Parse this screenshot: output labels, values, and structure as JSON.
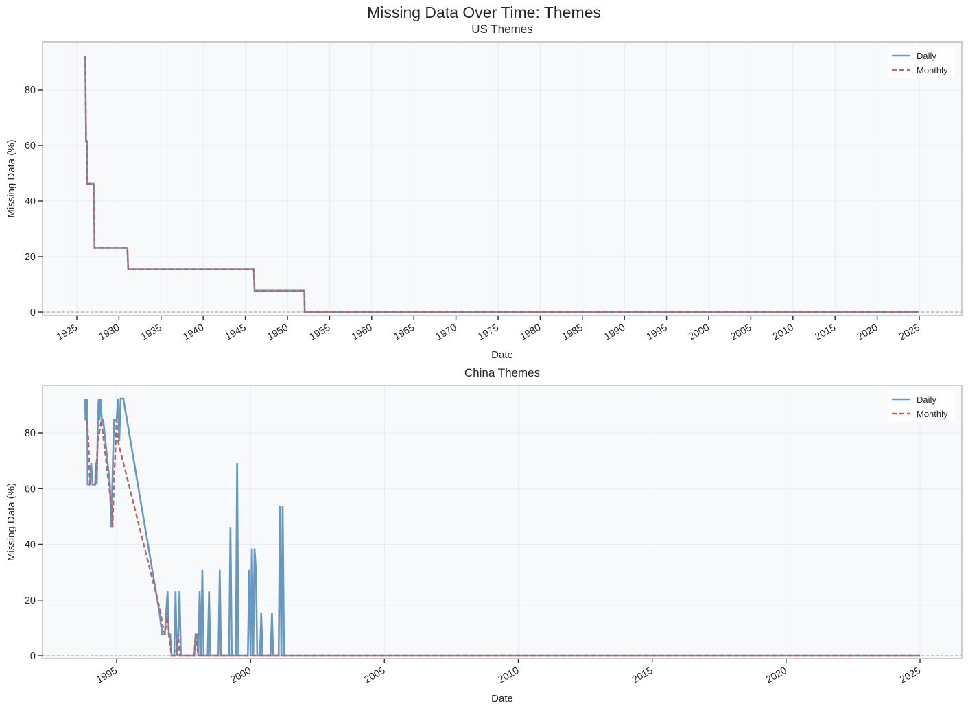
{
  "figure": {
    "title": "Missing Data Over Time: Themes"
  },
  "chart_data": [
    {
      "type": "line",
      "title": "US Themes",
      "xlabel": "Date",
      "ylabel": "Missing Data (%)",
      "xlim": [
        1921,
        2029
      ],
      "ylim": [
        -1.5,
        97
      ],
      "grid": true,
      "legend_position": "upper right",
      "x_ticks": [
        "1925",
        "1930",
        "1935",
        "1940",
        "1945",
        "1950",
        "1955",
        "1960",
        "1965",
        "1970",
        "1975",
        "1980",
        "1985",
        "1990",
        "1995",
        "2000",
        "2005",
        "2010",
        "2015",
        "2020",
        "2025"
      ],
      "y_ticks": [
        0,
        20,
        40,
        60,
        80
      ],
      "reference_line": {
        "y": 0,
        "style": "dashed",
        "color": "#999999"
      },
      "series": [
        {
          "name": "Daily",
          "style": "solid",
          "color": "#6699c2",
          "points": [
            [
              1926.0,
              92.3
            ],
            [
              1926.1,
              61.5
            ],
            [
              1926.2,
              61.5
            ],
            [
              1926.25,
              46.2
            ],
            [
              1927.0,
              46.2
            ],
            [
              1927.05,
              38.5
            ],
            [
              1927.1,
              23.1
            ],
            [
              1931.0,
              23.1
            ],
            [
              1931.1,
              15.4
            ],
            [
              1946.0,
              15.4
            ],
            [
              1946.1,
              7.7
            ],
            [
              1952.0,
              7.7
            ],
            [
              1952.05,
              0
            ],
            [
              2025.0,
              0
            ]
          ]
        },
        {
          "name": "Monthly",
          "style": "dashed",
          "color": "#b56666",
          "points": [
            [
              1926.0,
              92.3
            ],
            [
              1926.1,
              61.5
            ],
            [
              1926.2,
              61.5
            ],
            [
              1926.25,
              46.2
            ],
            [
              1927.0,
              46.2
            ],
            [
              1927.05,
              38.5
            ],
            [
              1927.1,
              23.1
            ],
            [
              1931.0,
              23.1
            ],
            [
              1931.1,
              15.4
            ],
            [
              1946.0,
              15.4
            ],
            [
              1946.1,
              7.7
            ],
            [
              1952.0,
              7.7
            ],
            [
              1952.05,
              0
            ],
            [
              2025.0,
              0
            ]
          ]
        }
      ]
    },
    {
      "type": "line",
      "title": "China Themes",
      "xlabel": "Date",
      "ylabel": "Missing Data (%)",
      "xlim": [
        1992.3,
        2026.5
      ],
      "ylim": [
        -1.5,
        97
      ],
      "grid": true,
      "legend_position": "upper right",
      "x_ticks": [
        "1995",
        "2000",
        "2005",
        "2010",
        "2015",
        "2020",
        "2025"
      ],
      "y_ticks": [
        0,
        20,
        40,
        60,
        80
      ],
      "reference_line": {
        "y": 0,
        "style": "dashed",
        "color": "#999999"
      },
      "series": [
        {
          "name": "Daily",
          "style": "solid",
          "color": "#6699c2",
          "points": [
            [
              1993.82,
              92.3
            ],
            [
              1993.84,
              84.6
            ],
            [
              1993.86,
              92.3
            ],
            [
              1993.88,
              84.6
            ],
            [
              1993.9,
              92.3
            ],
            [
              1993.92,
              61.5
            ],
            [
              1994.0,
              61.5
            ],
            [
              1994.05,
              69.2
            ],
            [
              1994.1,
              61.5
            ],
            [
              1994.2,
              61.5
            ],
            [
              1994.22,
              69.2
            ],
            [
              1994.26,
              61.5
            ],
            [
              1994.3,
              84.6
            ],
            [
              1994.33,
              92.3
            ],
            [
              1994.36,
              84.6
            ],
            [
              1994.4,
              92.3
            ],
            [
              1994.45,
              84.6
            ],
            [
              1994.5,
              84.6
            ],
            [
              1994.75,
              61.5
            ],
            [
              1994.8,
              46.2
            ],
            [
              1994.84,
              61.5
            ],
            [
              1994.9,
              84.6
            ],
            [
              1995.0,
              84.6
            ],
            [
              1995.05,
              92.3
            ],
            [
              1995.1,
              77.0
            ],
            [
              1995.15,
              92.3
            ],
            [
              1995.25,
              92.3
            ],
            [
              1996.6,
              15.4
            ],
            [
              1996.7,
              7.7
            ],
            [
              1996.8,
              7.7
            ],
            [
              1996.85,
              15.4
            ],
            [
              1996.9,
              23.1
            ],
            [
              1996.95,
              7.7
            ],
            [
              1997.0,
              7.7
            ],
            [
              1997.05,
              0
            ],
            [
              1997.15,
              0
            ],
            [
              1997.2,
              23.1
            ],
            [
              1997.25,
              0
            ],
            [
              1997.3,
              7.7
            ],
            [
              1997.35,
              23.1
            ],
            [
              1997.4,
              0
            ],
            [
              1997.9,
              0
            ],
            [
              1997.95,
              7.7
            ],
            [
              1998.0,
              7.7
            ],
            [
              1998.05,
              0
            ],
            [
              1998.1,
              23.1
            ],
            [
              1998.15,
              0
            ],
            [
              1998.2,
              30.8
            ],
            [
              1998.25,
              0
            ],
            [
              1998.4,
              0
            ],
            [
              1998.45,
              23.1
            ],
            [
              1998.5,
              0
            ],
            [
              1998.8,
              0
            ],
            [
              1998.85,
              30.8
            ],
            [
              1998.9,
              0
            ],
            [
              1999.2,
              0
            ],
            [
              1999.25,
              46.2
            ],
            [
              1999.3,
              0
            ],
            [
              1999.45,
              0
            ],
            [
              1999.5,
              69.2
            ],
            [
              1999.55,
              0
            ],
            [
              1999.9,
              0
            ],
            [
              1999.95,
              30.8
            ],
            [
              2000.0,
              0
            ],
            [
              2000.05,
              38.5
            ],
            [
              2000.1,
              0
            ],
            [
              2000.15,
              38.5
            ],
            [
              2000.2,
              30.8
            ],
            [
              2000.25,
              0
            ],
            [
              2000.35,
              0
            ],
            [
              2000.4,
              15.4
            ],
            [
              2000.45,
              0
            ],
            [
              2000.75,
              0
            ],
            [
              2000.8,
              15.4
            ],
            [
              2000.85,
              0
            ],
            [
              2001.05,
              0
            ],
            [
              2001.1,
              53.8
            ],
            [
              2001.15,
              0
            ],
            [
              2001.2,
              53.8
            ],
            [
              2001.25,
              0
            ],
            [
              2025.0,
              0
            ]
          ]
        },
        {
          "name": "Monthly",
          "style": "dashed",
          "color": "#b56666",
          "points": [
            [
              1993.9,
              84.6
            ],
            [
              1993.95,
              76.9
            ],
            [
              1994.0,
              61.5
            ],
            [
              1994.2,
              61.5
            ],
            [
              1994.3,
              76.9
            ],
            [
              1994.43,
              84.6
            ],
            [
              1994.8,
              53.8
            ],
            [
              1994.85,
              46.2
            ],
            [
              1994.9,
              61.5
            ],
            [
              1995.0,
              84.6
            ],
            [
              1995.05,
              77.0
            ],
            [
              1996.65,
              15.4
            ],
            [
              1996.7,
              11.5
            ],
            [
              1996.8,
              7.7
            ],
            [
              1996.9,
              15.4
            ],
            [
              1996.95,
              7.7
            ],
            [
              1997.05,
              0
            ],
            [
              1997.2,
              0
            ],
            [
              1997.3,
              7.7
            ],
            [
              1997.35,
              0
            ],
            [
              1997.9,
              0
            ],
            [
              1997.95,
              7.7
            ],
            [
              1998.05,
              0
            ],
            [
              2025.0,
              0
            ]
          ]
        }
      ]
    }
  ],
  "legend": {
    "daily_label": "Daily",
    "monthly_label": "Monthly"
  },
  "colors": {
    "daily": "#6699c2",
    "monthly": "#b56666",
    "axes_bg": "#f7f9fb",
    "grid": "#e6e9ec",
    "frame": "#cccccc",
    "zero_line": "#999999"
  }
}
